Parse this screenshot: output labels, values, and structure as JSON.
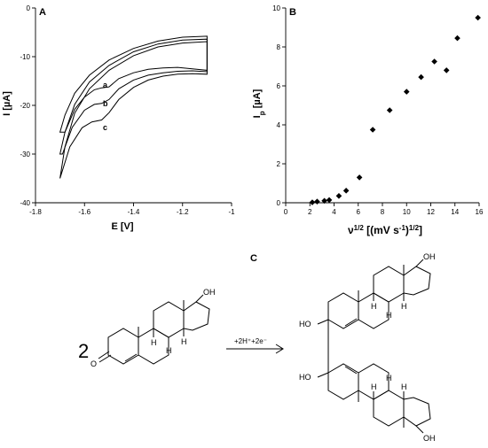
{
  "chart_data": [
    {
      "panel": "A",
      "type": "line",
      "xlabel": "E [V]",
      "ylabel": "I [µA]",
      "xlim": [
        -1.8,
        -1.0
      ],
      "ylim": [
        -40,
        0
      ],
      "xticks": [
        "-1.8",
        "-1.6",
        "-1.4",
        "-1.2",
        "-1"
      ],
      "yticks": [
        "0",
        "-10",
        "-20",
        "-30",
        "-40"
      ],
      "grid": false,
      "legend": "none",
      "series": [
        {
          "label": "a",
          "forward": [
            [
              -1.68,
              -25.5
            ],
            [
              -1.64,
              -20.8
            ],
            [
              -1.6,
              -18.3
            ],
            [
              -1.56,
              -16.8
            ],
            [
              -1.53,
              -16.4
            ],
            [
              -1.5,
              -16.2
            ],
            [
              -1.46,
              -14.5
            ],
            [
              -1.4,
              -13.3
            ],
            [
              -1.34,
              -12.6
            ],
            [
              -1.28,
              -12.3
            ],
            [
              -1.22,
              -12.2
            ],
            [
              -1.16,
              -12.5
            ],
            [
              -1.1,
              -12.8
            ]
          ],
          "reverse": [
            [
              -1.1,
              -5.8
            ],
            [
              -1.2,
              -6.0
            ],
            [
              -1.3,
              -6.8
            ],
            [
              -1.4,
              -8.3
            ],
            [
              -1.5,
              -10.7
            ],
            [
              -1.58,
              -13.8
            ],
            [
              -1.64,
              -17.5
            ],
            [
              -1.68,
              -22.0
            ],
            [
              -1.7,
              -25.5
            ]
          ]
        },
        {
          "label": "b",
          "forward": [
            [
              -1.69,
              -30.0
            ],
            [
              -1.65,
              -24.5
            ],
            [
              -1.6,
              -21.0
            ],
            [
              -1.56,
              -19.8
            ],
            [
              -1.53,
              -19.6
            ],
            [
              -1.5,
              -18.8
            ],
            [
              -1.46,
              -16.6
            ],
            [
              -1.4,
              -14.8
            ],
            [
              -1.34,
              -13.8
            ],
            [
              -1.28,
              -13.3
            ],
            [
              -1.22,
              -13.0
            ],
            [
              -1.16,
              -12.9
            ],
            [
              -1.1,
              -13.1
            ]
          ],
          "reverse": [
            [
              -1.1,
              -6.4
            ],
            [
              -1.2,
              -6.6
            ],
            [
              -1.3,
              -7.4
            ],
            [
              -1.4,
              -9.0
            ],
            [
              -1.5,
              -11.8
            ],
            [
              -1.58,
              -15.2
            ],
            [
              -1.64,
              -19.8
            ],
            [
              -1.68,
              -25.5
            ],
            [
              -1.7,
              -30.0
            ]
          ]
        },
        {
          "label": "c",
          "forward": [
            [
              -1.7,
              -35.0
            ],
            [
              -1.66,
              -28.5
            ],
            [
              -1.61,
              -24.6
            ],
            [
              -1.57,
              -23.4
            ],
            [
              -1.53,
              -23.0
            ],
            [
              -1.5,
              -21.5
            ],
            [
              -1.46,
              -18.8
            ],
            [
              -1.4,
              -16.3
            ],
            [
              -1.34,
              -14.8
            ],
            [
              -1.28,
              -14.0
            ],
            [
              -1.22,
              -13.6
            ],
            [
              -1.16,
              -13.5
            ],
            [
              -1.1,
              -13.6
            ]
          ],
          "reverse": [
            [
              -1.1,
              -6.9
            ],
            [
              -1.2,
              -7.2
            ],
            [
              -1.3,
              -8.0
            ],
            [
              -1.4,
              -9.8
            ],
            [
              -1.5,
              -12.8
            ],
            [
              -1.58,
              -16.6
            ],
            [
              -1.64,
              -21.6
            ],
            [
              -1.68,
              -28.5
            ],
            [
              -1.7,
              -35.0
            ]
          ]
        }
      ]
    },
    {
      "panel": "B",
      "type": "scatter",
      "xlabel": "ν^1/2 [(mV s^-1)^1/2]",
      "ylabel": "I_p [µA]",
      "xlim": [
        0,
        16
      ],
      "ylim": [
        0,
        10
      ],
      "xticks": [
        "0",
        "2",
        "4",
        "6",
        "8",
        "10",
        "12",
        "14",
        "16"
      ],
      "yticks": [
        "0",
        "2",
        "4",
        "6",
        "8",
        "10"
      ],
      "grid": false,
      "legend": "none",
      "marker": "diamond",
      "x": [
        2.2,
        2.6,
        3.2,
        3.6,
        4.4,
        5.0,
        6.1,
        7.2,
        8.6,
        10.0,
        11.2,
        12.3,
        13.3,
        14.2,
        15.9
      ],
      "y": [
        0.02,
        0.06,
        0.1,
        0.14,
        0.35,
        0.62,
        1.3,
        3.75,
        4.75,
        5.7,
        6.45,
        7.25,
        6.8,
        8.45,
        9.5
      ]
    }
  ],
  "panels": {
    "a": "A",
    "b": "B",
    "c": "C"
  },
  "scheme": {
    "coefficient": "2",
    "arrow_label": "+2H⁺+2e⁻",
    "atoms": {
      "h": "H",
      "oh": "OH",
      "ho": "HO",
      "o": "O"
    }
  }
}
